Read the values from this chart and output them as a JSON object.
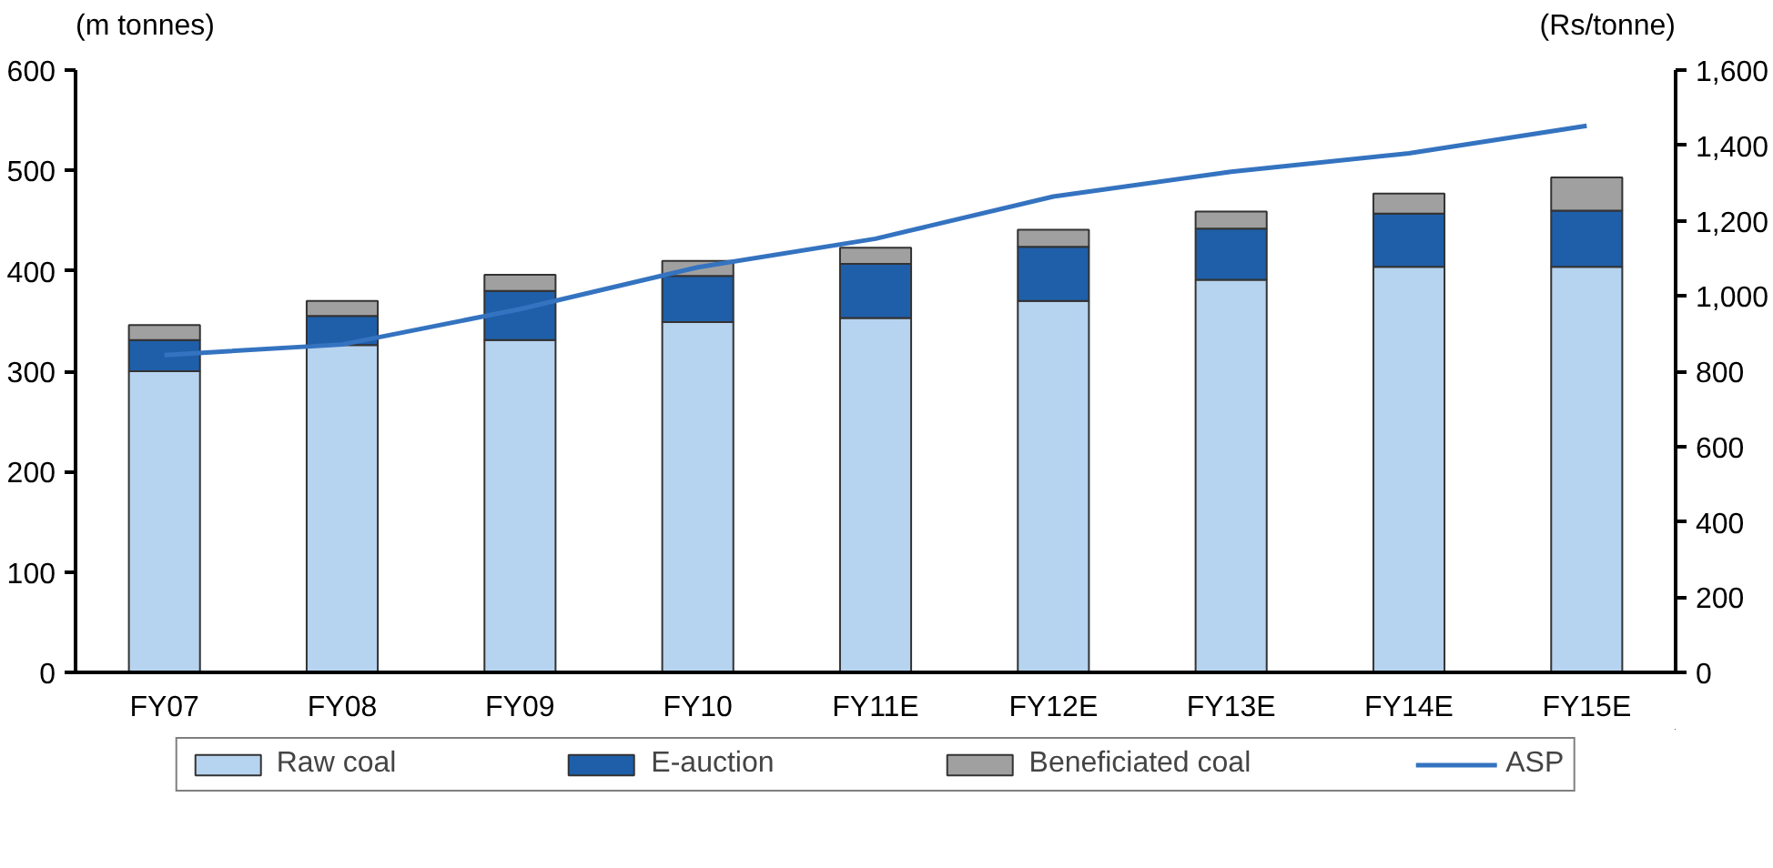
{
  "chart_data": {
    "type": "bar",
    "stacked": true,
    "ylabel": "(m tonnes)",
    "y2label": "(Rs/tonne)",
    "categories": [
      "FY07",
      "FY08",
      "FY09",
      "FY10",
      "FY11E",
      "FY12E",
      "FY13E",
      "FY14E",
      "FY15E"
    ],
    "series": [
      {
        "name": "Raw coal",
        "color": "#b6d3ef",
        "values": [
          300,
          326,
          331,
          349,
          353,
          370,
          391,
          404,
          404
        ]
      },
      {
        "name": "E-auction",
        "color": "#1f5fa9",
        "values": [
          31,
          29,
          49,
          46,
          54,
          54,
          51,
          53,
          56
        ]
      },
      {
        "name": "Beneficiated coal",
        "color": "#a0a0a0",
        "values": [
          15,
          15,
          16,
          15,
          16,
          17,
          17,
          20,
          33
        ]
      },
      {
        "name": "ASP",
        "type": "line",
        "axis": "y2",
        "color": "#3473c0",
        "values": [
          843,
          871,
          965,
          1076,
          1152,
          1264,
          1330,
          1379,
          1452
        ]
      }
    ],
    "ylim": [
      0,
      600
    ],
    "yticks": [
      0,
      100,
      200,
      300,
      400,
      500,
      600
    ],
    "y2lim": [
      0,
      1600
    ],
    "y2ticks": [
      0,
      {
        "value": 200,
        "label": "200"
      },
      {
        "value": 400,
        "label": "400"
      },
      {
        "value": 600,
        "label": "600"
      },
      {
        "value": 800,
        "label": "800"
      },
      {
        "value": 1000,
        "label": "1,000"
      },
      {
        "value": 1200,
        "label": "1,200"
      },
      {
        "value": 1400,
        "label": "1,400"
      },
      {
        "value": 1600,
        "label": "1,600"
      }
    ],
    "grid": false,
    "legend": "bottom",
    "line_style": "solid",
    "marker": "none"
  }
}
